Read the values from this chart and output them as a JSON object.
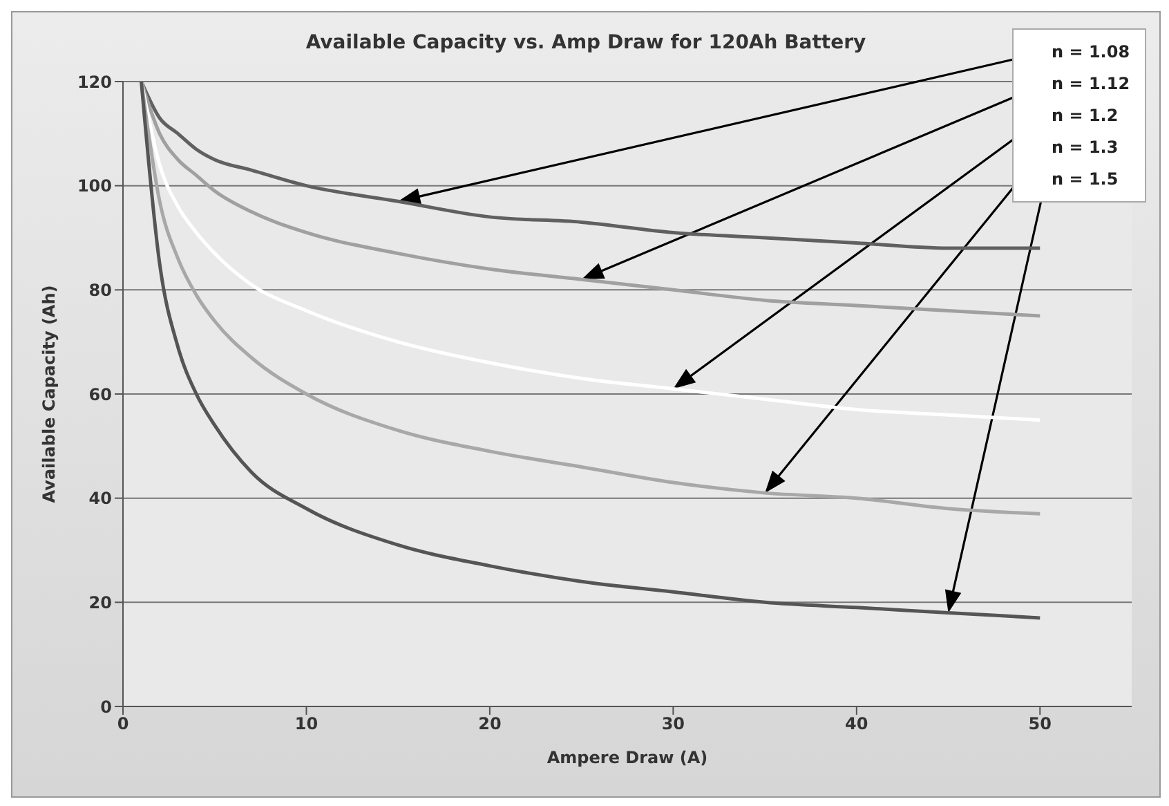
{
  "chart_data": {
    "type": "line",
    "title": "Available Capacity vs. Amp Draw for 120Ah Battery",
    "xlabel": "Ampere Draw (A)",
    "ylabel": "Available Capacity (Ah)",
    "x": [
      1,
      2,
      3,
      4,
      5,
      7,
      10,
      15,
      20,
      25,
      30,
      35,
      40,
      45,
      50
    ],
    "series": [
      {
        "name": "n = 1.08",
        "color": "#606060",
        "values": [
          120,
          113,
          110,
          107,
          105,
          103,
          100,
          97,
          94,
          93,
          91,
          90,
          89,
          88,
          88
        ]
      },
      {
        "name": "n = 1.12",
        "color": "#a0a0a0",
        "values": [
          120,
          110,
          105,
          102,
          99,
          95,
          91,
          87,
          84,
          82,
          80,
          78,
          77,
          76,
          75
        ]
      },
      {
        "name": "n = 1.2",
        "color": "#ffffff",
        "values": [
          120,
          104,
          96,
          91,
          87,
          81,
          76,
          70,
          66,
          63,
          61,
          59,
          57,
          56,
          55
        ]
      },
      {
        "name": "n = 1.3",
        "color": "#a8a8a8",
        "values": [
          120,
          97,
          86,
          79,
          74,
          67,
          60,
          53,
          49,
          46,
          43,
          41,
          40,
          38,
          37
        ]
      },
      {
        "name": "n = 1.5",
        "color": "#555555",
        "values": [
          120,
          85,
          69,
          60,
          54,
          45,
          38,
          31,
          27,
          24,
          22,
          20,
          19,
          18,
          17
        ]
      }
    ],
    "xlim": [
      0,
      55
    ],
    "xticks": [
      0,
      10,
      20,
      30,
      40,
      50
    ],
    "ylim": [
      0,
      120
    ],
    "yticks": [
      0,
      20,
      40,
      60,
      80,
      100,
      120
    ],
    "grid": "y",
    "legend": "top right",
    "marker": "none",
    "line_style": "solid"
  }
}
